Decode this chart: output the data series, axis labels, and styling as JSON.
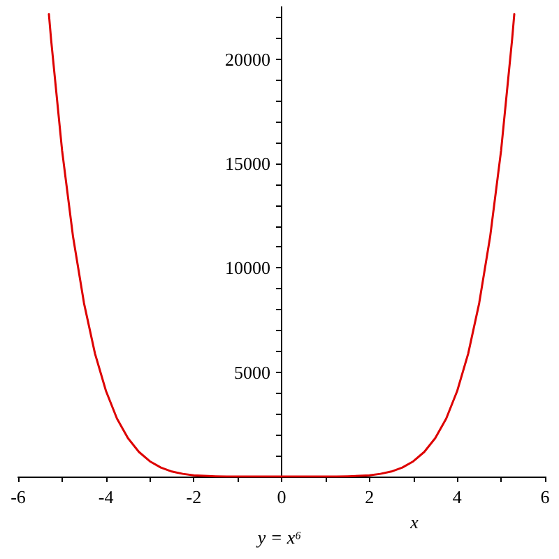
{
  "chart_data": {
    "type": "line",
    "title": "y = x⁶",
    "xlabel": "x",
    "x": [
      -5.3,
      -5.25,
      -5,
      -4.75,
      -4.5,
      -4.25,
      -4,
      -3.75,
      -3.5,
      -3.25,
      -3,
      -2.75,
      -2.5,
      -2.25,
      -2,
      -1.75,
      -1.5,
      -1.25,
      -1,
      -0.75,
      -0.5,
      -0.25,
      0,
      0.25,
      0.5,
      0.75,
      1,
      1.25,
      1.5,
      1.75,
      2,
      2.25,
      2.5,
      2.75,
      3,
      3.25,
      3.5,
      3.75,
      4,
      4.25,
      4.5,
      4.75,
      5,
      5.25,
      5.3
    ],
    "values": [
      22160,
      20940,
      15630,
      11490,
      8300,
      5890,
      4100,
      2780,
      1840,
      1180,
      730,
      430,
      240,
      130,
      60,
      30,
      10,
      0,
      0,
      0,
      0,
      0,
      0,
      0,
      0,
      0,
      0,
      0,
      10,
      30,
      60,
      130,
      240,
      430,
      730,
      1180,
      1840,
      2780,
      4100,
      5890,
      8300,
      11490,
      15630,
      20940,
      22160
    ],
    "color": "#dd0000",
    "xlim": [
      -6,
      6
    ],
    "xticks": [
      -6,
      {
        "value": -5,
        "label": null
      },
      -4,
      {
        "value": -3,
        "label": null
      },
      -2,
      {
        "value": -1,
        "label": null
      },
      0,
      {
        "value": 1,
        "label": null
      },
      2,
      {
        "value": 3,
        "label": null
      },
      4,
      {
        "value": 5,
        "label": null
      },
      6
    ],
    "ylim": [
      0,
      22500
    ],
    "yticks": [
      {
        "value": 1000,
        "label": null
      },
      {
        "value": 2000,
        "label": null
      },
      {
        "value": 3000,
        "label": null
      },
      {
        "value": 4000,
        "label": null
      },
      5000,
      {
        "value": 6000,
        "label": null
      },
      {
        "value": 7000,
        "label": null
      },
      {
        "value": 8000,
        "label": null
      },
      {
        "value": 9000,
        "label": null
      },
      10000,
      {
        "value": 11000,
        "label": null
      },
      {
        "value": 12000,
        "label": null
      },
      {
        "value": 13000,
        "label": null
      },
      {
        "value": 14000,
        "label": null
      },
      15000,
      {
        "value": 16000,
        "label": null
      },
      {
        "value": 17000,
        "label": null
      },
      {
        "value": 18000,
        "label": null
      },
      {
        "value": 19000,
        "label": null
      },
      20000,
      {
        "value": 21000,
        "label": null
      },
      {
        "value": 22000,
        "label": null
      }
    ],
    "grid": false,
    "marker": "none"
  }
}
